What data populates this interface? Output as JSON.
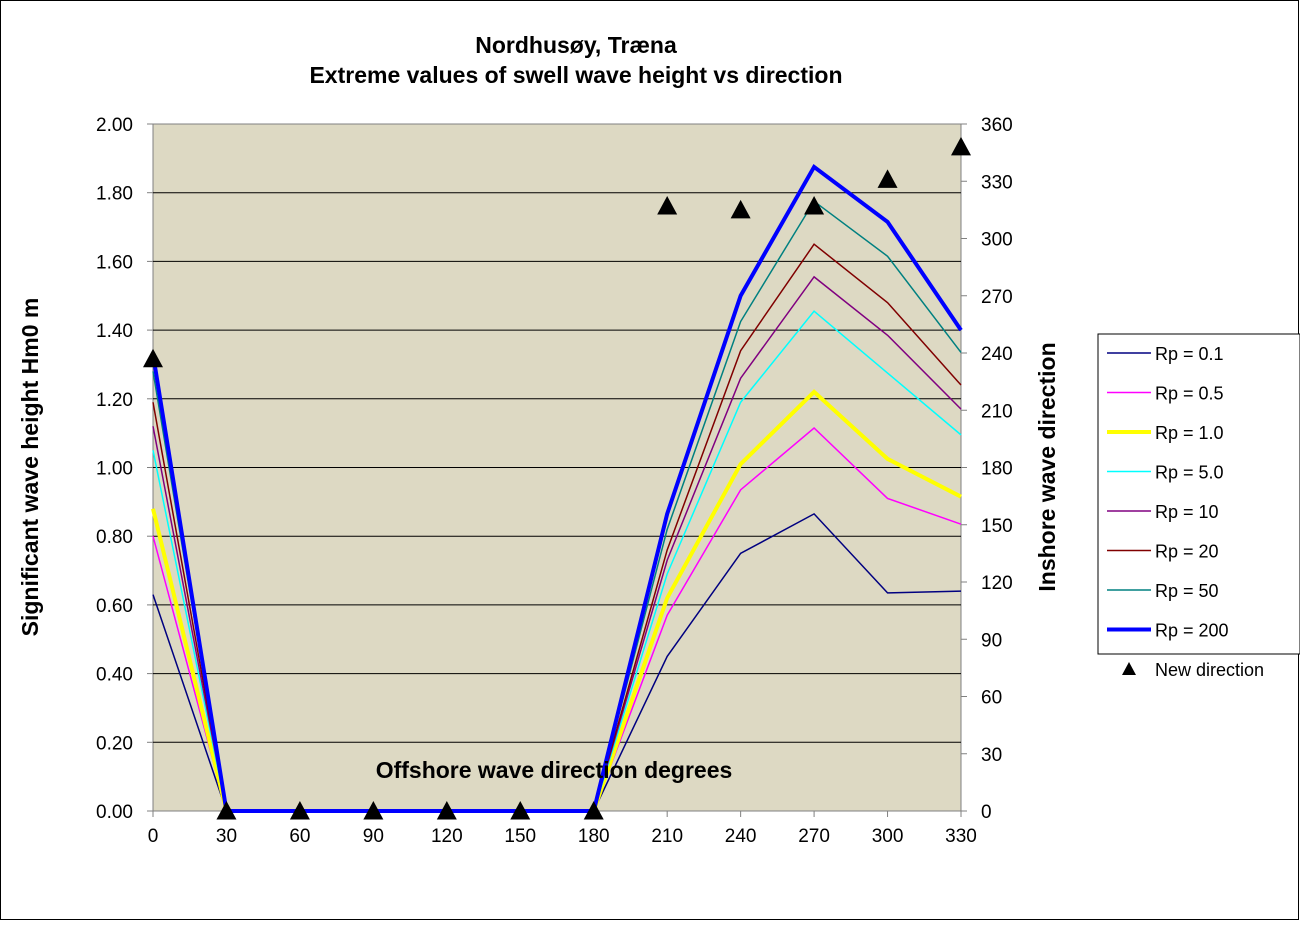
{
  "chart_data": {
    "type": "line",
    "title": "Nordhusøy, Træna",
    "subtitle": "Extreme values of swell wave height vs direction",
    "xlabel": "Offshore wave direction degrees",
    "ylabel": "Significant wave height Hm0 m",
    "y2label": "Inshore wave direction",
    "x": [
      0,
      30,
      60,
      90,
      120,
      150,
      180,
      210,
      240,
      270,
      300,
      330
    ],
    "x_tick_labels": [
      "0",
      "30",
      "60",
      "90",
      "120",
      "150",
      "180",
      "210",
      "240",
      "270",
      "300",
      "330"
    ],
    "ylim": [
      0,
      2
    ],
    "y_tick_labels": [
      "0.00",
      "0.20",
      "0.40",
      "0.60",
      "0.80",
      "1.00",
      "1.20",
      "1.40",
      "1.60",
      "1.80",
      "2.00"
    ],
    "y2lim": [
      0,
      360
    ],
    "y2_tick_labels": [
      "0",
      "30",
      "60",
      "90",
      "120",
      "150",
      "180",
      "210",
      "240",
      "270",
      "300",
      "330",
      "360"
    ],
    "grid": "horizontal",
    "plot_background": "#ddd9c3",
    "legend_position": "right",
    "series": [
      {
        "name": "Rp = 0.1",
        "color": "#000080",
        "width": 1.5,
        "axis": "left",
        "values": [
          0.63,
          0,
          0,
          0,
          0,
          0,
          0,
          0.45,
          0.75,
          0.865,
          0.635,
          0.64
        ]
      },
      {
        "name": "Rp = 0.5",
        "color": "#ff00ff",
        "width": 1.5,
        "axis": "left",
        "values": [
          0.8,
          0,
          0,
          0,
          0,
          0,
          0,
          0.57,
          0.935,
          1.115,
          0.91,
          0.835
        ]
      },
      {
        "name": "Rp = 1.0",
        "color": "#ffff00",
        "width": 4,
        "axis": "left",
        "values": [
          0.88,
          0,
          0,
          0,
          0,
          0,
          0,
          0.62,
          1.01,
          1.22,
          1.025,
          0.915
        ]
      },
      {
        "name": "Rp = 5.0",
        "color": "#00ffff",
        "width": 1.5,
        "axis": "left",
        "values": [
          1.05,
          0,
          0,
          0,
          0,
          0,
          0,
          0.69,
          1.19,
          1.455,
          1.275,
          1.095
        ]
      },
      {
        "name": "Rp = 10",
        "color": "#800080",
        "width": 1.5,
        "axis": "left",
        "values": [
          1.12,
          0,
          0,
          0,
          0,
          0,
          0,
          0.73,
          1.26,
          1.555,
          1.385,
          1.17
        ]
      },
      {
        "name": "Rp = 20",
        "color": "#800000",
        "width": 1.5,
        "axis": "left",
        "values": [
          1.19,
          0,
          0,
          0,
          0,
          0,
          0,
          0.76,
          1.34,
          1.65,
          1.48,
          1.24
        ]
      },
      {
        "name": "Rp = 50",
        "color": "#008080",
        "width": 1.5,
        "axis": "left",
        "values": [
          1.28,
          0,
          0,
          0,
          0,
          0,
          0,
          0.82,
          1.425,
          1.775,
          1.615,
          1.335
        ]
      },
      {
        "name": "Rp = 200",
        "color": "#0000ff",
        "width": 4,
        "axis": "left",
        "values": [
          1.33,
          0,
          0,
          0,
          0,
          0,
          0,
          0.865,
          1.5,
          1.875,
          1.715,
          1.4
        ]
      }
    ],
    "markers": {
      "name": "New direction",
      "color": "#000000",
      "symbol": "triangle",
      "axis": "right",
      "values": [
        237,
        0,
        0,
        0,
        0,
        0,
        0,
        317,
        315,
        317,
        331,
        348
      ]
    }
  }
}
